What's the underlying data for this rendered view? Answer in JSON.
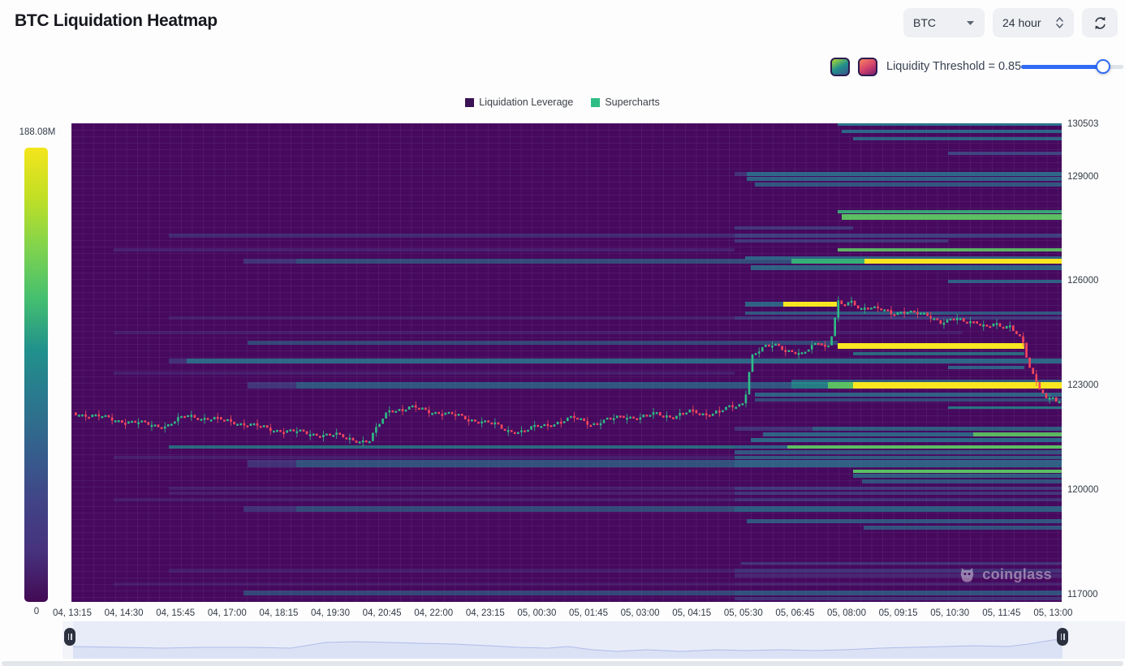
{
  "header": {
    "title": "BTC Liquidation Heatmap"
  },
  "controls": {
    "symbol": "BTC",
    "timeframe": "24 hour",
    "threshold_label": "Liquidity Threshold = 0.85",
    "threshold_value": 0.85,
    "slider_percent": 80,
    "accent_color": "#2f6bf6",
    "colormap_swatches": {
      "viridis": [
        "#b5dc2c",
        "#21918c",
        "#3b528b"
      ],
      "inferno": [
        "#f7855c",
        "#d6456c",
        "#781c6d"
      ]
    }
  },
  "legend": [
    {
      "label": "Liquidation Leverage",
      "color": "#3b1255"
    },
    {
      "label": "Supercharts",
      "color": "#2ebd85"
    }
  ],
  "watermark": {
    "text": "coinglass"
  },
  "chart_data": {
    "type": "heatmap",
    "overlay": "candlestick",
    "title": "BTC Liquidation Heatmap",
    "colorbar": {
      "max_label": "188.08M",
      "min_label": "0",
      "palette": [
        "#f4e51c",
        "#c0df25",
        "#7fd34e",
        "#44bf70",
        "#21918c",
        "#2a788e",
        "#355f8d",
        "#414487",
        "#46327e",
        "#440a54"
      ]
    },
    "y_axis": {
      "side": "right",
      "ticks": [
        "130503",
        "129000",
        "126000",
        "123000",
        "120000",
        "117000"
      ]
    },
    "x_axis": {
      "ticks": [
        "04, 13:15",
        "04, 14:30",
        "04, 15:45",
        "04, 17:00",
        "04, 18:15",
        "04, 19:30",
        "04, 20:45",
        "04, 22:00",
        "04, 23:15",
        "05, 00:30",
        "05, 01:45",
        "05, 03:00",
        "05, 04:15",
        "05, 05:30",
        "05, 06:45",
        "05, 08:00",
        "05, 09:15",
        "05, 10:30",
        "05, 11:45",
        "05, 13:00"
      ]
    },
    "band_colors": {
      "vd": "#4b3a82",
      "d": "#3f5a8f",
      "t": "#2a788e",
      "T": "#21918c",
      "g": "#35b779",
      "G": "#5ec962",
      "y": "#f8e621"
    },
    "heatmap_bands": [
      [
        130520,
        5,
        [
          [
            0.774,
            1,
            "t",
            0.95
          ]
        ]
      ],
      [
        130290,
        4,
        [
          [
            0.778,
            1,
            "t",
            0.85
          ]
        ]
      ],
      [
        130080,
        4,
        [
          [
            0.789,
            1,
            "t",
            0.8
          ]
        ]
      ],
      [
        129660,
        4,
        [
          [
            0.885,
            1,
            "d",
            0.75
          ]
        ]
      ],
      [
        129080,
        5,
        [
          [
            0.67,
            0.682,
            "d",
            0.5
          ],
          [
            0.682,
            1,
            "t",
            0.85
          ]
        ]
      ],
      [
        128920,
        5,
        [
          [
            0.682,
            1,
            "t",
            0.8
          ]
        ]
      ],
      [
        128760,
        5,
        [
          [
            0.69,
            1,
            "t",
            0.7
          ]
        ]
      ],
      [
        127990,
        4,
        [
          [
            0.774,
            1,
            "g",
            0.9
          ]
        ]
      ],
      [
        127830,
        7,
        [
          [
            0.778,
            1,
            "G",
            0.95
          ]
        ]
      ],
      [
        127520,
        4,
        [
          [
            0.67,
            0.789,
            "d",
            0.55
          ]
        ]
      ],
      [
        127310,
        5,
        [
          [
            0.098,
            0.67,
            "d",
            0.4
          ],
          [
            0.67,
            1,
            "d",
            0.65
          ]
        ]
      ],
      [
        127150,
        4,
        [
          [
            0.67,
            0.885,
            "d",
            0.55
          ]
        ]
      ],
      [
        126900,
        4,
        [
          [
            0.043,
            0.67,
            "vd",
            0.5
          ],
          [
            0.774,
            1,
            "G",
            0.9
          ]
        ]
      ],
      [
        126660,
        4,
        [
          [
            0.68,
            1,
            "t",
            0.8
          ]
        ]
      ],
      [
        126570,
        6,
        [
          [
            0.174,
            0.227,
            "d",
            0.5
          ],
          [
            0.227,
            0.727,
            "t",
            0.6
          ],
          [
            0.727,
            0.801,
            "g",
            0.95
          ],
          [
            0.801,
            1,
            "y",
            1
          ]
        ]
      ],
      [
        126380,
        6,
        [
          [
            0.686,
            1,
            "t",
            0.8
          ]
        ]
      ],
      [
        125990,
        4,
        [
          [
            0.885,
            1,
            "t",
            0.8
          ]
        ]
      ],
      [
        125340,
        6,
        [
          [
            0.68,
            0.719,
            "t",
            0.8
          ],
          [
            0.719,
            0.773,
            "y",
            1
          ]
        ]
      ],
      [
        125080,
        4,
        [
          [
            0.68,
            1,
            "t",
            0.7
          ]
        ]
      ],
      [
        124940,
        4,
        [
          [
            0.098,
            0.67,
            "vd",
            0.45
          ],
          [
            0.67,
            1,
            "d",
            0.6
          ]
        ]
      ],
      [
        124520,
        4,
        [
          [
            0.043,
            0.9,
            "vd",
            0.4
          ]
        ]
      ],
      [
        124220,
        5,
        [
          [
            0.178,
            0.774,
            "t",
            0.55
          ]
        ]
      ],
      [
        124130,
        7,
        [
          [
            0.774,
            0.962,
            "y",
            1
          ]
        ]
      ],
      [
        123920,
        4,
        [
          [
            0.789,
            0.962,
            "T",
            0.7
          ]
        ]
      ],
      [
        123710,
        6,
        [
          [
            0.098,
            0.116,
            "d",
            0.5
          ],
          [
            0.116,
            1,
            "t",
            0.85
          ]
        ]
      ],
      [
        123520,
        4,
        [
          [
            0.885,
            0.962,
            "t",
            0.8
          ]
        ]
      ],
      [
        123360,
        4,
        [
          [
            0.043,
            0.67,
            "vd",
            0.45
          ]
        ]
      ],
      [
        123120,
        5,
        [
          [
            0.727,
            1,
            "t",
            0.75
          ]
        ]
      ],
      [
        123010,
        8,
        [
          [
            0.178,
            0.227,
            "d",
            0.55
          ],
          [
            0.227,
            0.727,
            "t",
            0.7
          ],
          [
            0.727,
            0.764,
            "T",
            0.85
          ],
          [
            0.764,
            0.789,
            "G",
            0.95
          ],
          [
            0.789,
            1,
            "y",
            1
          ]
        ]
      ],
      [
        122750,
        5,
        [
          [
            0.69,
            1,
            "t",
            0.8
          ]
        ]
      ],
      [
        122590,
        4,
        [
          [
            0.69,
            1,
            "t",
            0.6
          ]
        ]
      ],
      [
        122360,
        3,
        [
          [
            0.885,
            1,
            "T",
            0.8
          ]
        ]
      ],
      [
        121770,
        5,
        [
          [
            0.67,
            0.748,
            "d",
            0.5
          ],
          [
            0.748,
            1,
            "t",
            0.75
          ]
        ]
      ],
      [
        121590,
        5,
        [
          [
            0.698,
            0.911,
            "t",
            0.8
          ],
          [
            0.911,
            1,
            "G",
            0.9
          ]
        ]
      ],
      [
        121430,
        5,
        [
          [
            0.686,
            1,
            "t",
            0.85
          ]
        ]
      ],
      [
        121240,
        4,
        [
          [
            0.098,
            0.67,
            "T",
            0.7
          ],
          [
            0.67,
            0.723,
            "t",
            0.8
          ],
          [
            0.723,
            1,
            "G",
            0.95
          ]
        ]
      ],
      [
        121080,
        5,
        [
          [
            0.67,
            1,
            "t",
            0.7
          ]
        ]
      ],
      [
        120940,
        4,
        [
          [
            0.043,
            0.67,
            "vd",
            0.45
          ],
          [
            0.67,
            1,
            "t",
            0.75
          ]
        ]
      ],
      [
        120770,
        9,
        [
          [
            0.178,
            0.227,
            "d",
            0.5
          ],
          [
            0.227,
            0.67,
            "t",
            0.65
          ],
          [
            0.67,
            1,
            "t",
            0.8
          ]
        ]
      ],
      [
        120540,
        4,
        [
          [
            0.789,
            1,
            "G",
            0.95
          ]
        ]
      ],
      [
        120420,
        5,
        [
          [
            0.789,
            1,
            "t",
            0.75
          ]
        ]
      ],
      [
        120260,
        5,
        [
          [
            0.798,
            1,
            "t",
            0.65
          ]
        ]
      ],
      [
        120050,
        4,
        [
          [
            0.098,
            0.67,
            "vd",
            0.45
          ],
          [
            0.67,
            1,
            "d",
            0.6
          ]
        ]
      ],
      [
        119910,
        4,
        [
          [
            0.098,
            0.67,
            "vd",
            0.4
          ],
          [
            0.67,
            1,
            "d",
            0.55
          ]
        ]
      ],
      [
        119730,
        4,
        [
          [
            0.043,
            0.67,
            "vd",
            0.4
          ],
          [
            0.67,
            1,
            "d",
            0.5
          ]
        ]
      ],
      [
        119450,
        7,
        [
          [
            0.174,
            0.227,
            "d",
            0.5
          ],
          [
            0.227,
            0.67,
            "t",
            0.6
          ],
          [
            0.67,
            1,
            "t",
            0.75
          ]
        ]
      ],
      [
        119100,
        5,
        [
          [
            0.682,
            1,
            "t",
            0.7
          ]
        ]
      ],
      [
        118930,
        5,
        [
          [
            0.8,
            1,
            "t",
            0.65
          ]
        ]
      ],
      [
        117910,
        3,
        [
          [
            0.676,
            1,
            "d",
            0.55
          ]
        ]
      ],
      [
        117700,
        5,
        [
          [
            0.098,
            0.67,
            "vd",
            0.4
          ],
          [
            0.67,
            1,
            "d",
            0.5
          ]
        ]
      ],
      [
        117540,
        5,
        [
          [
            0.67,
            1,
            "vd",
            0.6
          ]
        ]
      ],
      [
        117310,
        4,
        [
          [
            0.043,
            0.67,
            "vd",
            0.35
          ],
          [
            0.67,
            1,
            "vd",
            0.5
          ]
        ]
      ],
      [
        117050,
        6,
        [
          [
            0.174,
            0.67,
            "t",
            0.55
          ],
          [
            0.67,
            1,
            "t",
            0.65
          ]
        ]
      ],
      [
        116890,
        4,
        [
          [
            0.67,
            1,
            "d",
            0.5
          ]
        ]
      ]
    ],
    "candles": {
      "up_color": "#2ebd85",
      "down_color": "#f6465d",
      "anchors": [
        [
          0,
          122240
        ],
        [
          0.034,
          122077
        ],
        [
          0.071,
          121914
        ],
        [
          0.096,
          121844
        ],
        [
          0.118,
          122147
        ],
        [
          0.133,
          122077
        ],
        [
          0.166,
          121961
        ],
        [
          0.198,
          121774
        ],
        [
          0.231,
          121658
        ],
        [
          0.268,
          121565
        ],
        [
          0.301,
          121379
        ],
        [
          0.313,
          121961
        ],
        [
          0.321,
          122310
        ],
        [
          0.346,
          122356
        ],
        [
          0.371,
          122240
        ],
        [
          0.399,
          122077
        ],
        [
          0.424,
          121914
        ],
        [
          0.44,
          121727
        ],
        [
          0.457,
          121681
        ],
        [
          0.473,
          121844
        ],
        [
          0.493,
          121961
        ],
        [
          0.51,
          122077
        ],
        [
          0.526,
          121914
        ],
        [
          0.543,
          122007
        ],
        [
          0.559,
          122147
        ],
        [
          0.575,
          122077
        ],
        [
          0.592,
          122193
        ],
        [
          0.608,
          122124
        ],
        [
          0.625,
          122240
        ],
        [
          0.641,
          122193
        ],
        [
          0.66,
          122310
        ],
        [
          0.674,
          122426
        ],
        [
          0.68,
          122542
        ],
        [
          0.684,
          123240
        ],
        [
          0.687,
          123869
        ],
        [
          0.698,
          124055
        ],
        [
          0.711,
          124171
        ],
        [
          0.727,
          124008
        ],
        [
          0.739,
          123869
        ],
        [
          0.748,
          124102
        ],
        [
          0.756,
          124288
        ],
        [
          0.764,
          124102
        ],
        [
          0.77,
          124637
        ],
        [
          0.774,
          125405
        ],
        [
          0.78,
          125265
        ],
        [
          0.789,
          125382
        ],
        [
          0.797,
          125219
        ],
        [
          0.805,
          125312
        ],
        [
          0.817,
          125172
        ],
        [
          0.83,
          125033
        ],
        [
          0.842,
          125196
        ],
        [
          0.854,
          125079
        ],
        [
          0.866,
          124963
        ],
        [
          0.879,
          124847
        ],
        [
          0.891,
          124963
        ],
        [
          0.903,
          124777
        ],
        [
          0.916,
          124847
        ],
        [
          0.924,
          124730
        ],
        [
          0.932,
          124777
        ],
        [
          0.94,
          124614
        ],
        [
          0.948,
          124684
        ],
        [
          0.957,
          124498
        ],
        [
          0.962,
          124242
        ],
        [
          0.967,
          123636
        ],
        [
          0.973,
          123171
        ],
        [
          0.979,
          122845
        ],
        [
          0.985,
          122565
        ],
        [
          0.991,
          122752
        ],
        [
          0.996,
          122496
        ],
        [
          1,
          122635
        ]
      ]
    },
    "navigator": {
      "points": [
        [
          0,
          31
        ],
        [
          0.05,
          32
        ],
        [
          0.09,
          33
        ],
        [
          0.13,
          32
        ],
        [
          0.18,
          32
        ],
        [
          0.22,
          33
        ],
        [
          0.255,
          26
        ],
        [
          0.285,
          25
        ],
        [
          0.32,
          26
        ],
        [
          0.35,
          27
        ],
        [
          0.385,
          28
        ],
        [
          0.42,
          30
        ],
        [
          0.45,
          32
        ],
        [
          0.48,
          33
        ],
        [
          0.5,
          31
        ],
        [
          0.525,
          35
        ],
        [
          0.55,
          37
        ],
        [
          0.58,
          35
        ],
        [
          0.615,
          37
        ],
        [
          0.65,
          35
        ],
        [
          0.68,
          36
        ],
        [
          0.715,
          35
        ],
        [
          0.75,
          36
        ],
        [
          0.78,
          35
        ],
        [
          0.815,
          33
        ],
        [
          0.845,
          32
        ],
        [
          0.88,
          31
        ],
        [
          0.91,
          30
        ],
        [
          0.945,
          31
        ],
        [
          0.965,
          28
        ],
        [
          0.99,
          23
        ],
        [
          1,
          22
        ]
      ],
      "line_color": "#aebce8",
      "fill_color": "#d9e1f5"
    }
  }
}
